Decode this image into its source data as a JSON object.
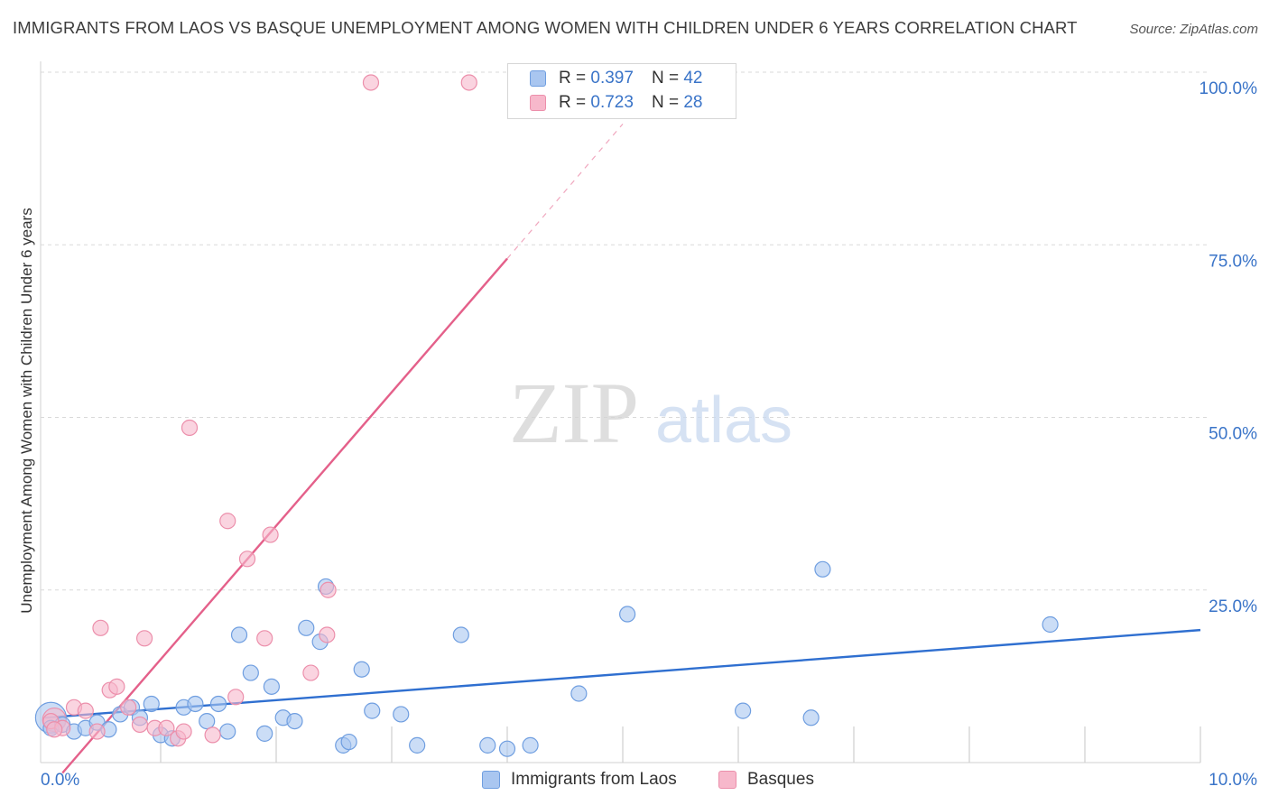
{
  "title": "IMMIGRANTS FROM LAOS VS BASQUE UNEMPLOYMENT AMONG WOMEN WITH CHILDREN UNDER 6 YEARS CORRELATION CHART",
  "source": "Source: ZipAtlas.com",
  "watermark": {
    "zip": "ZIP",
    "atlas": "atlas"
  },
  "legend": {
    "laos": {
      "r_label": "R =",
      "r_value": "0.397",
      "n_label": "N =",
      "n_value": "42"
    },
    "basques": {
      "r_label": "R =",
      "r_value": "0.723",
      "n_label": "N =",
      "n_value": "28"
    }
  },
  "bottom_legend": {
    "laos": "Immigrants from Laos",
    "basques": "Basques"
  },
  "colors": {
    "laos_fill": "#a9c6f0",
    "laos_stroke": "#6f9ee0",
    "laos_line": "#2f6fd0",
    "basques_fill": "#f7b8cb",
    "basques_stroke": "#ec8fab",
    "basques_line": "#e4608a",
    "tick_label": "#3a74c8",
    "grid": "#d9d9d9"
  },
  "chart_data": {
    "type": "scatter",
    "xlabel": "",
    "ylabel": "Unemployment Among Women with Children Under 6 years",
    "xlim": [
      0,
      10
    ],
    "ylim": [
      0,
      100
    ],
    "x_tick_labels": [
      {
        "value": 0,
        "label": "0.0%"
      },
      {
        "value": 10,
        "label": "10.0%"
      }
    ],
    "y_tick_labels": [
      {
        "value": 25,
        "label": "25.0%"
      },
      {
        "value": 50,
        "label": "50.0%"
      },
      {
        "value": 75,
        "label": "75.0%"
      },
      {
        "value": 100,
        "label": "100.0%"
      }
    ],
    "series": [
      {
        "name": "Immigrants from Laos",
        "points": [
          [
            0.05,
            5.0
          ],
          [
            0.15,
            5.5
          ],
          [
            0.25,
            4.5
          ],
          [
            0.35,
            5.0
          ],
          [
            0.45,
            5.8
          ],
          [
            0.55,
            4.8
          ],
          [
            0.65,
            7.0
          ],
          [
            0.75,
            8.0
          ],
          [
            0.82,
            6.5
          ],
          [
            0.92,
            8.5
          ],
          [
            1.0,
            4.0
          ],
          [
            1.1,
            3.5
          ],
          [
            1.2,
            8.0
          ],
          [
            1.3,
            8.5
          ],
          [
            1.4,
            6.0
          ],
          [
            1.5,
            8.5
          ],
          [
            1.58,
            4.5
          ],
          [
            1.68,
            18.5
          ],
          [
            1.78,
            13.0
          ],
          [
            1.9,
            4.2
          ],
          [
            1.96,
            11.0
          ],
          [
            2.06,
            6.5
          ],
          [
            2.16,
            6.0
          ],
          [
            2.26,
            19.5
          ],
          [
            2.38,
            17.5
          ],
          [
            2.43,
            25.5
          ],
          [
            2.58,
            2.5
          ],
          [
            2.63,
            3.0
          ],
          [
            2.74,
            13.5
          ],
          [
            2.83,
            7.5
          ],
          [
            3.08,
            7.0
          ],
          [
            3.22,
            2.5
          ],
          [
            3.6,
            18.5
          ],
          [
            3.83,
            2.5
          ],
          [
            4.0,
            2.0
          ],
          [
            4.2,
            2.5
          ],
          [
            4.62,
            10.0
          ],
          [
            5.04,
            21.5
          ],
          [
            6.04,
            7.5
          ],
          [
            6.63,
            6.5
          ],
          [
            6.73,
            28.0
          ],
          [
            8.7,
            20.0
          ]
        ]
      },
      {
        "name": "Basques",
        "points": [
          [
            0.05,
            6.0
          ],
          [
            0.15,
            5.0
          ],
          [
            0.25,
            8.0
          ],
          [
            0.35,
            7.5
          ],
          [
            0.45,
            4.5
          ],
          [
            0.48,
            19.5
          ],
          [
            0.56,
            10.5
          ],
          [
            0.62,
            11.0
          ],
          [
            0.72,
            8.0
          ],
          [
            0.82,
            5.5
          ],
          [
            0.86,
            18.0
          ],
          [
            0.95,
            5.0
          ],
          [
            1.05,
            5.0
          ],
          [
            1.15,
            3.5
          ],
          [
            1.2,
            4.5
          ],
          [
            1.25,
            48.5
          ],
          [
            1.45,
            4.0
          ],
          [
            1.58,
            35.0
          ],
          [
            1.65,
            9.5
          ],
          [
            1.75,
            29.5
          ],
          [
            1.9,
            18.0
          ],
          [
            1.95,
            33.0
          ],
          [
            2.3,
            13.0
          ],
          [
            2.44,
            18.5
          ],
          [
            2.45,
            25.0
          ],
          [
            2.82,
            98.5
          ],
          [
            3.67,
            98.5
          ],
          [
            0.08,
            4.8
          ]
        ]
      }
    ],
    "trendlines": [
      {
        "series": "Immigrants from Laos",
        "type": "linear",
        "x": [
          0.0,
          10.0
        ],
        "y": [
          6.5,
          19.2
        ]
      },
      {
        "series": "Basques",
        "type": "linear",
        "x": [
          0.15,
          4.0
        ],
        "y": [
          -1.5,
          73.0
        ],
        "extrapolated_x": [
          4.0,
          5.0
        ],
        "extrapolated_y": [
          73.0,
          92.5
        ]
      }
    ]
  }
}
